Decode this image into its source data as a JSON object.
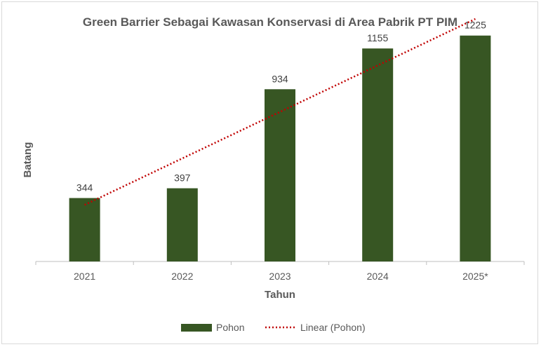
{
  "chart_data": {
    "type": "bar",
    "title": "Green Barrier Sebagai Kawasan Konservasi di Area Pabrik PT PIM",
    "xlabel": "Tahun",
    "ylabel": "Batang",
    "categories": [
      "2021",
      "2022",
      "2023",
      "2024",
      "2025*"
    ],
    "series": [
      {
        "name": "Pohon",
        "values": [
          344,
          397,
          934,
          1155,
          1225
        ],
        "color": "#375623"
      }
    ],
    "trendline": {
      "name": "Linear (Pohon)",
      "type": "linear",
      "color": "#c00000",
      "style": "dotted"
    },
    "ylim": [
      0,
      1300
    ],
    "grid": false,
    "legend": "bottom"
  }
}
